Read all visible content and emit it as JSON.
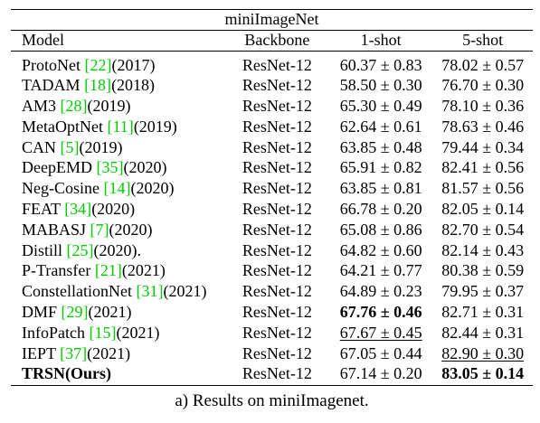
{
  "table": {
    "title": "miniImageNet",
    "headers": {
      "model": "Model",
      "backbone": "Backbone",
      "one_shot": "1-shot",
      "five_shot": "5-shot"
    },
    "rows": [
      {
        "name": "ProtoNet ",
        "ref": "[22]",
        "year": "(2017)",
        "backbone": "ResNet-12",
        "one_shot": "60.37 ± 0.83",
        "five_shot": "78.02 ± 0.57"
      },
      {
        "name": "TADAM ",
        "ref": "[18]",
        "year": "(2018)",
        "backbone": "ResNet-12",
        "one_shot": "58.50 ± 0.30",
        "five_shot": "76.70 ± 0.30"
      },
      {
        "name": "AM3 ",
        "ref": "[28]",
        "year": "(2019)",
        "backbone": "ResNet-12",
        "one_shot": "65.30 ± 0.49",
        "five_shot": "78.10 ± 0.36"
      },
      {
        "name": "MetaOptNet ",
        "ref": "[11]",
        "year": "(2019)",
        "backbone": "ResNet-12",
        "one_shot": "62.64 ± 0.61",
        "five_shot": "78.63 ± 0.46"
      },
      {
        "name": "CAN ",
        "ref": "[5]",
        "year": "(2019)",
        "backbone": "ResNet-12",
        "one_shot": "63.85 ± 0.48",
        "five_shot": "79.44 ± 0.34"
      },
      {
        "name": "DeepEMD ",
        "ref": "[35]",
        "year": "(2020)",
        "backbone": "ResNet-12",
        "one_shot": "65.91 ± 0.82",
        "five_shot": "82.41 ± 0.56"
      },
      {
        "name": "Neg-Cosine ",
        "ref": "[14]",
        "year": "(2020)",
        "backbone": "ResNet-12",
        "one_shot": "63.85 ± 0.81",
        "five_shot": "81.57 ± 0.56"
      },
      {
        "name": "FEAT ",
        "ref": "[34]",
        "year": "(2020)",
        "backbone": "ResNet-12",
        "one_shot": "66.78 ± 0.20",
        "five_shot": "82.05 ± 0.14"
      },
      {
        "name": "MABASJ ",
        "ref": "[7]",
        "year": "(2020)",
        "backbone": "ResNet-12",
        "one_shot": "65.08 ± 0.86",
        "five_shot": "82.70 ± 0.54"
      },
      {
        "name": "Distill ",
        "ref": "[25]",
        "year": "(2020).",
        "backbone": "ResNet-12",
        "one_shot": "64.82 ± 0.60",
        "five_shot": "82.14 ± 0.43"
      },
      {
        "name": "P-Transfer ",
        "ref": "[21]",
        "year": "(2021)",
        "backbone": "ResNet-12",
        "one_shot": "64.21 ± 0.77",
        "five_shot": "80.38 ± 0.59"
      },
      {
        "name": "ConstellationNet ",
        "ref": "[31]",
        "year": "(2021)",
        "backbone": "ResNet-12",
        "one_shot": "64.89 ± 0.23",
        "five_shot": "79.95 ± 0.37"
      },
      {
        "name": "DMF ",
        "ref": "[29]",
        "year": "(2021)",
        "backbone": "ResNet-12",
        "one_shot": "67.76 ± 0.46",
        "five_shot": "82.71 ± 0.31"
      },
      {
        "name": "InfoPatch ",
        "ref": "[15]",
        "year": "(2021)",
        "backbone": "ResNet-12",
        "one_shot": "67.67 ± 0.45",
        "five_shot": "82.44 ± 0.31"
      },
      {
        "name": "IEPT ",
        "ref": "[37]",
        "year": "(2021)",
        "backbone": "ResNet-12",
        "one_shot": "67.05 ± 0.44",
        "five_shot": "82.90 ± 0.30"
      },
      {
        "name": "TRSN(Ours)",
        "ref": "",
        "year": "",
        "backbone": "ResNet-12",
        "one_shot": "67.14 ± 0.20",
        "five_shot": "83.05 ± 0.14"
      }
    ]
  },
  "caption": "a) Results on miniImagenet.",
  "colors": {
    "reference_link": "#00cc00",
    "text": "#000000"
  }
}
